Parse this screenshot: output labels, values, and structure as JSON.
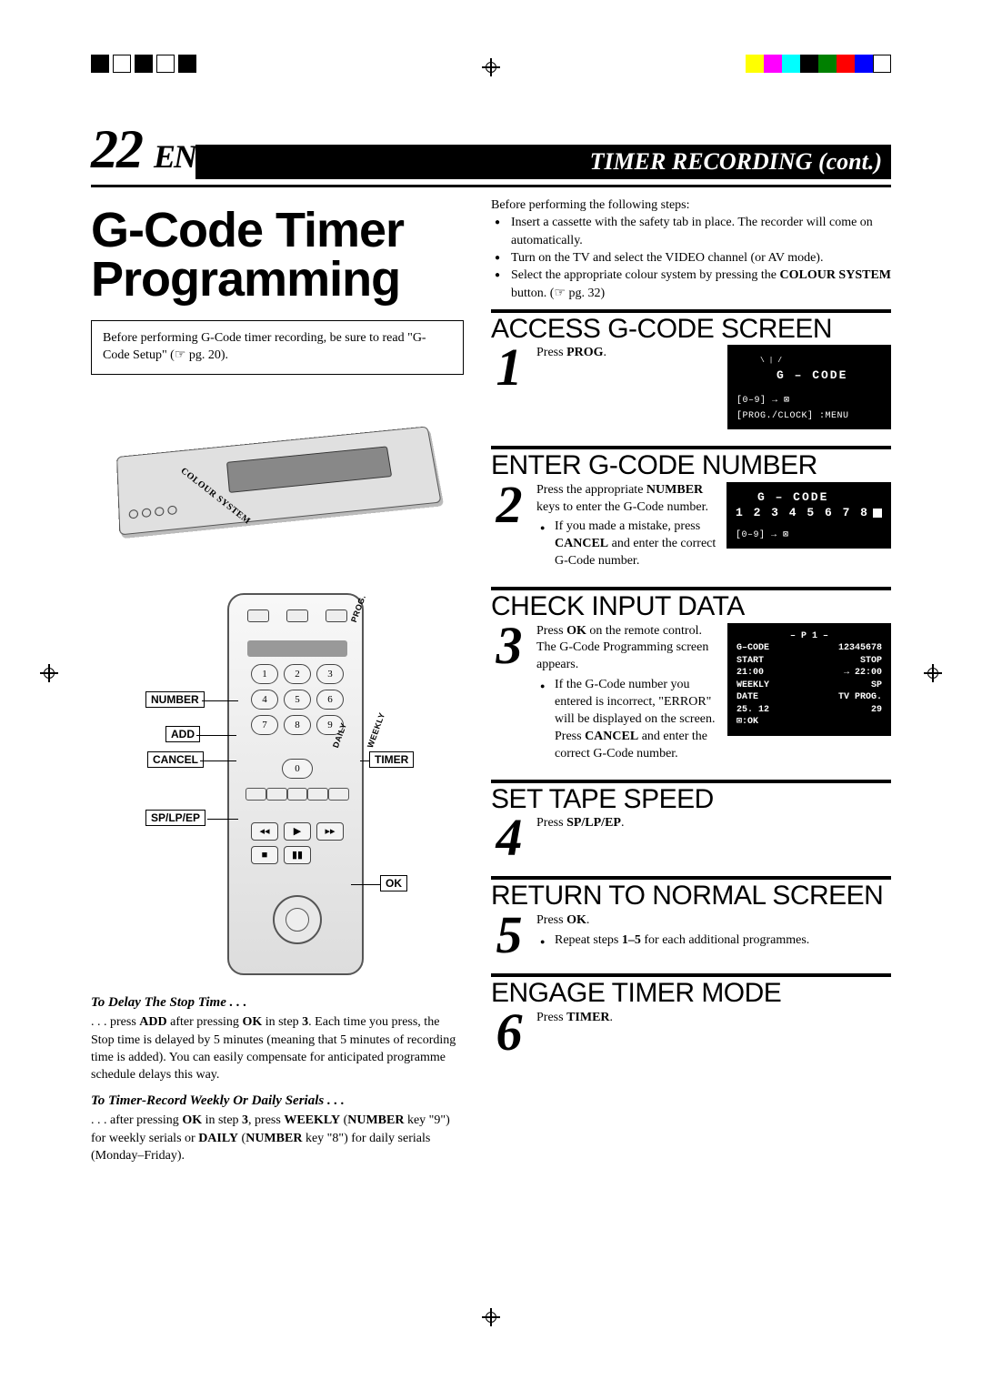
{
  "page": {
    "number": "22",
    "lang": "EN",
    "section_title": "TIMER RECORDING (cont.)"
  },
  "title": "G-Code Timer Programming",
  "note_box": "Before performing G-Code timer recording, be sure to read \"G-Code Setup\" (☞ pg. 20).",
  "vcr_label": "COLOUR SYSTEM",
  "remote": {
    "callouts": {
      "number": "NUMBER",
      "add": "ADD",
      "cancel": "CANCEL",
      "splpep": "SP/LP/EP",
      "timer": "TIMER",
      "ok": "OK",
      "prog": "PROG."
    },
    "diag_weekly": "WEEKLY",
    "diag_daily": "DAILY",
    "keys": [
      "1",
      "2",
      "3",
      "4",
      "5",
      "6",
      "7",
      "8",
      "9"
    ],
    "zero": "0",
    "transport": [
      "◂◂",
      "▶",
      "▸▸",
      "■",
      "▮▮"
    ]
  },
  "intro": {
    "lead": "Before performing the following steps:",
    "items": [
      "Insert a cassette with the safety tab in place. The recorder will come on automatically.",
      "Turn on the TV and select the VIDEO channel (or AV mode).",
      "Select the appropriate colour system by pressing the <b>COLOUR SYSTEM</b> button. (☞ pg. 32)"
    ]
  },
  "steps": [
    {
      "n": "1",
      "head": "ACCESS G-CODE SCREEN",
      "body": "Press <b>PROG</b>.",
      "osd": {
        "lines": [
          "<span class='ttl' style='padding-left:44px;'>G – CODE</span>",
          "<div style='padding-left:26px;height:10px;'>&#8198;</div>",
          "<span class='small'>[0–9] → ⊠</span>",
          "<span class='small'>[PROG./CLOCK] :MENU</span>"
        ],
        "show_blink_square": true
      }
    },
    {
      "n": "2",
      "head": "ENTER G-CODE NUMBER",
      "body": "Press the appropriate <b>NUMBER</b> keys to enter the G-Code number.",
      "bullets": [
        "If you made a mistake, press <b>CANCEL</b> and enter the correct G-Code number."
      ],
      "osd": {
        "lines": [
          "<span class='ttl' style='padding-left:24px;'>G – CODE</span>",
          "<span class='ttl'>1 2 3 4 5 6 7 8</span><span class='osd-blink' style='margin-left:4px;'></span>",
          "<div style='height:6px;'></div>",
          "<span class='small'>[0–9] → ⊠</span>"
        ]
      }
    },
    {
      "n": "3",
      "head": "CHECK INPUT DATA",
      "body": "Press <b>OK</b> on the remote control. The G-Code Programming screen appears.",
      "bullets": [
        "If the G-Code number you entered is incorrect, \"ERROR\" will be displayed on the screen. Press <b>CANCEL</b> and enter the correct G-Code number."
      ],
      "osd": {
        "table": {
          "header": "– P 1 –",
          "rows": [
            [
              "G–CODE",
              "12345678"
            ],
            [
              "START",
              "STOP"
            ],
            [
              "21:00",
              "→    22:00"
            ],
            [
              "WEEKLY",
              "SP"
            ],
            [
              "DATE",
              "TV PROG."
            ],
            [
              "25. 12",
              "29"
            ],
            [
              "⊠:OK",
              ""
            ]
          ]
        }
      }
    },
    {
      "n": "4",
      "head": "SET TAPE SPEED",
      "body": "Press <b>SP/LP/EP</b>."
    },
    {
      "n": "5",
      "head": "RETURN TO NORMAL SCREEN",
      "body": "Press <b>OK</b>.",
      "bullets": [
        "Repeat steps <b>1–5</b> for each additional programmes."
      ]
    },
    {
      "n": "6",
      "head": "ENGAGE TIMER MODE",
      "body": "Press <b>TIMER</b>."
    }
  ],
  "tips": [
    {
      "h": "To Delay The Stop Time . . .",
      "p": ". . . press <b>ADD</b> after pressing <b>OK</b> in step <b>3</b>. Each time you press, the Stop time is delayed by 5 minutes (meaning that 5 minutes of recording time is added). You can easily compensate for anticipated programme schedule delays this way."
    },
    {
      "h": "To Timer-Record Weekly Or Daily Serials . . .",
      "p": ". . . after pressing <b>OK</b> in step <b>3</b>, press <b>WEEKLY</b> (<b>NUMBER</b> key \"9\") for weekly serials or <b>DAILY</b> (<b>NUMBER</b> key \"8\") for daily serials (Monday–Friday)."
    }
  ],
  "colors": {
    "reg_bars_left": [
      "#000000",
      "#ffffff",
      "#000000",
      "#ffffff",
      "#000000"
    ],
    "reg_bars_right": [
      "#ffff00",
      "#ff00ff",
      "#00ffff",
      "#000000",
      "#008000",
      "#ff0000",
      "#0000ff",
      "#ffffff"
    ]
  }
}
